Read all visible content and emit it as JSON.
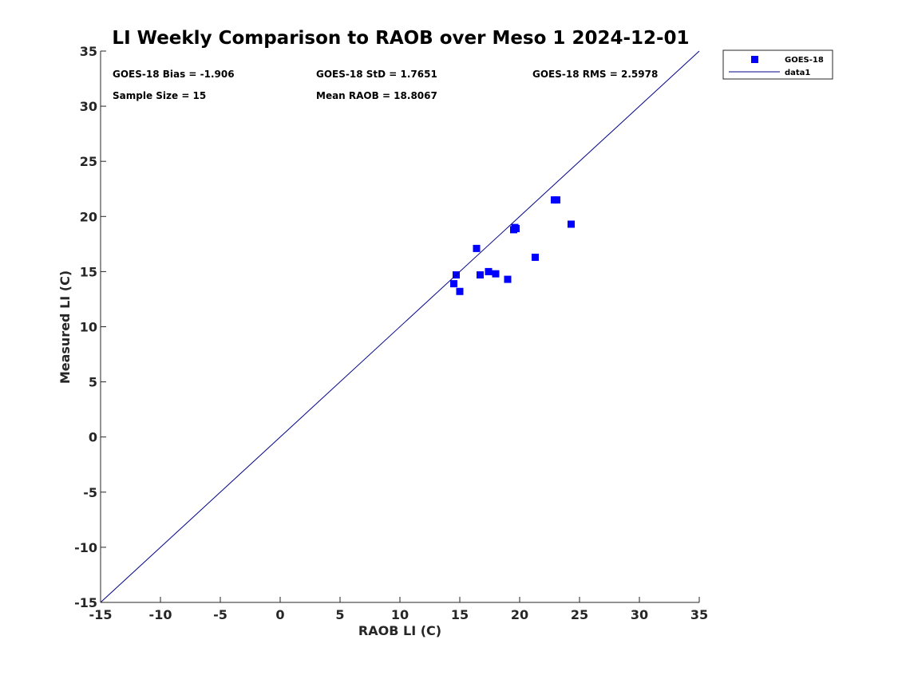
{
  "chart_data": {
    "type": "scatter",
    "title": "LI Weekly Comparison to RAOB over Meso 1 2024-12-01",
    "xlabel": "RAOB LI (C)",
    "ylabel": "Measured LI (C)",
    "xlim": [
      -15,
      35
    ],
    "ylim": [
      -15,
      35
    ],
    "xticks": [
      "-15",
      "-10",
      "-5",
      "0",
      "5",
      "10",
      "15",
      "20",
      "25",
      "30",
      "35"
    ],
    "yticks": [
      "-15",
      "-10",
      "-5",
      "0",
      "5",
      "10",
      "15",
      "20",
      "25",
      "30",
      "35"
    ],
    "grid": false,
    "legend_position": "outside-top-right",
    "annotations": {
      "bias": "GOES-18 Bias = -1.906",
      "std": "GOES-18 StD = 1.7651",
      "rms": "GOES-18 RMS = 2.5978",
      "sample": "Sample Size = 15",
      "mean": "Mean RAOB = 18.8067"
    },
    "series": [
      {
        "name": "GOES-18",
        "kind": "scatter",
        "color": "#0000ff",
        "x": [
          14.5,
          14.7,
          15.0,
          16.4,
          16.7,
          17.4,
          18.0,
          19.0,
          19.5,
          19.7,
          19.6,
          21.3,
          22.9,
          23.1,
          24.3
        ],
        "y": [
          13.9,
          14.7,
          13.2,
          17.1,
          14.7,
          15.0,
          14.8,
          14.3,
          18.8,
          18.9,
          19.0,
          16.3,
          21.5,
          21.5,
          19.3
        ]
      },
      {
        "name": "data1",
        "kind": "line",
        "color": "#00008b",
        "x": [
          -15,
          35
        ],
        "y": [
          -15,
          35
        ]
      }
    ]
  }
}
